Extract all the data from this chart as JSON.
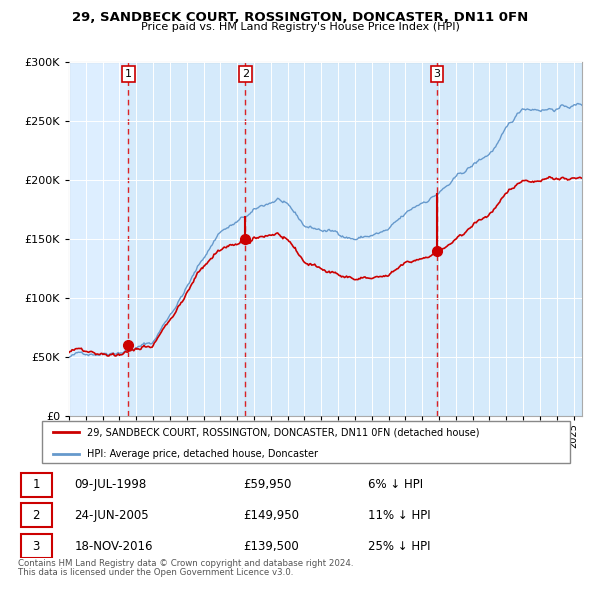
{
  "title": "29, SANDBECK COURT, ROSSINGTON, DONCASTER, DN11 0FN",
  "subtitle": "Price paid vs. HM Land Registry's House Price Index (HPI)",
  "legend_line1": "29, SANDBECK COURT, ROSSINGTON, DONCASTER, DN11 0FN (detached house)",
  "legend_line2": "HPI: Average price, detached house, Doncaster",
  "table_rows": [
    {
      "num": "1",
      "date": "09-JUL-1998",
      "price": "£59,950",
      "pct": "6% ↓ HPI"
    },
    {
      "num": "2",
      "date": "24-JUN-2005",
      "price": "£149,950",
      "pct": "11% ↓ HPI"
    },
    {
      "num": "3",
      "date": "18-NOV-2016",
      "price": "£139,500",
      "pct": "25% ↓ HPI"
    }
  ],
  "footer1": "Contains HM Land Registry data © Crown copyright and database right 2024.",
  "footer2": "This data is licensed under the Open Government Licence v3.0.",
  "sale_dates": [
    1998.53,
    2005.48,
    2016.89
  ],
  "sale_prices": [
    59950,
    149950,
    139500
  ],
  "red_color": "#cc0000",
  "blue_color": "#6699cc",
  "bg_color": "#ddeeff",
  "vline_color": "#dd0000",
  "ylim": [
    0,
    300000
  ],
  "xlim_start": 1995.0,
  "xlim_end": 2025.5
}
